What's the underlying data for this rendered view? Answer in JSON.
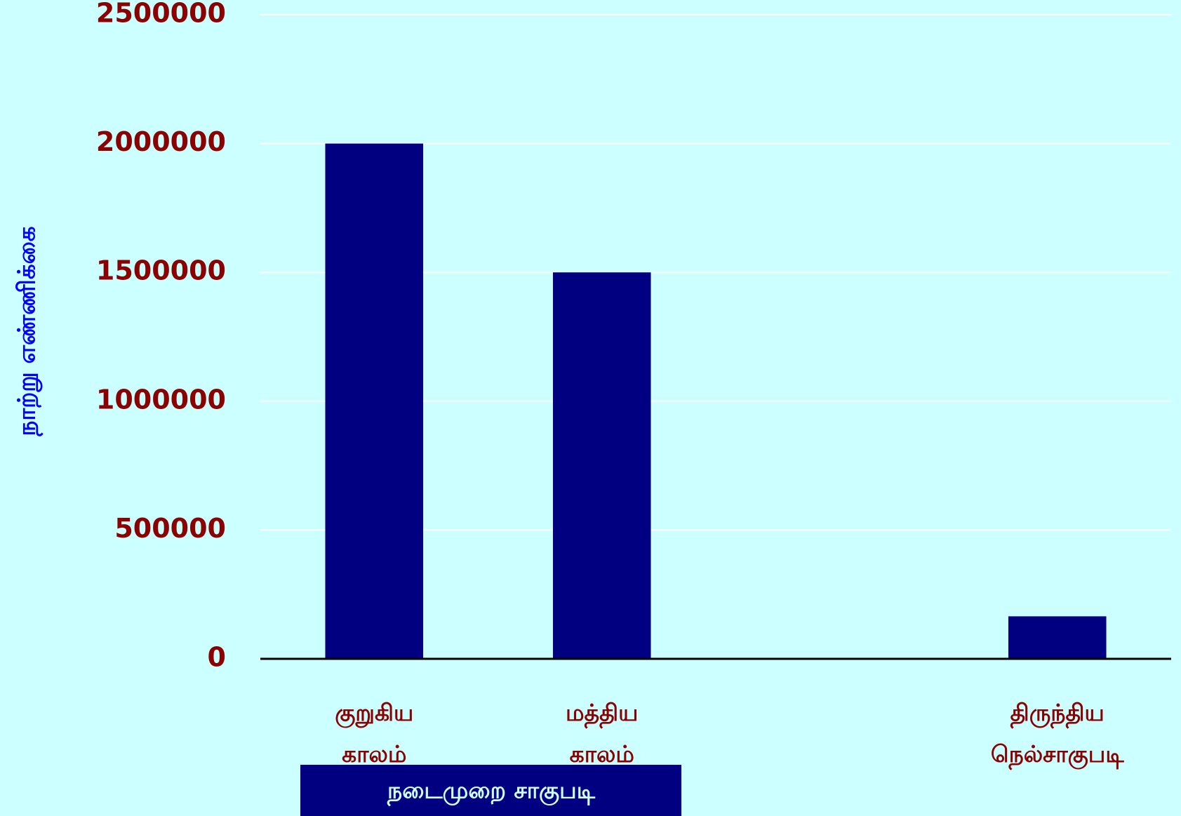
{
  "chart_data": {
    "type": "bar",
    "y_axis_label": "நாற்று எண்ணிக்கை",
    "annotation": "நடைமுறை சாகுபடி",
    "categories": [
      "குறுகிய காலம்",
      "மத்திய காலம்",
      null,
      "திருந்திய நெல்சாகுபடி"
    ],
    "values": [
      2000000,
      1500000,
      null,
      165000
    ],
    "color": "#000080",
    "ylim": [
      0,
      2500000
    ],
    "yticks": [
      0,
      500000,
      1000000,
      1500000,
      2000000,
      2500000
    ],
    "grid": true
  }
}
